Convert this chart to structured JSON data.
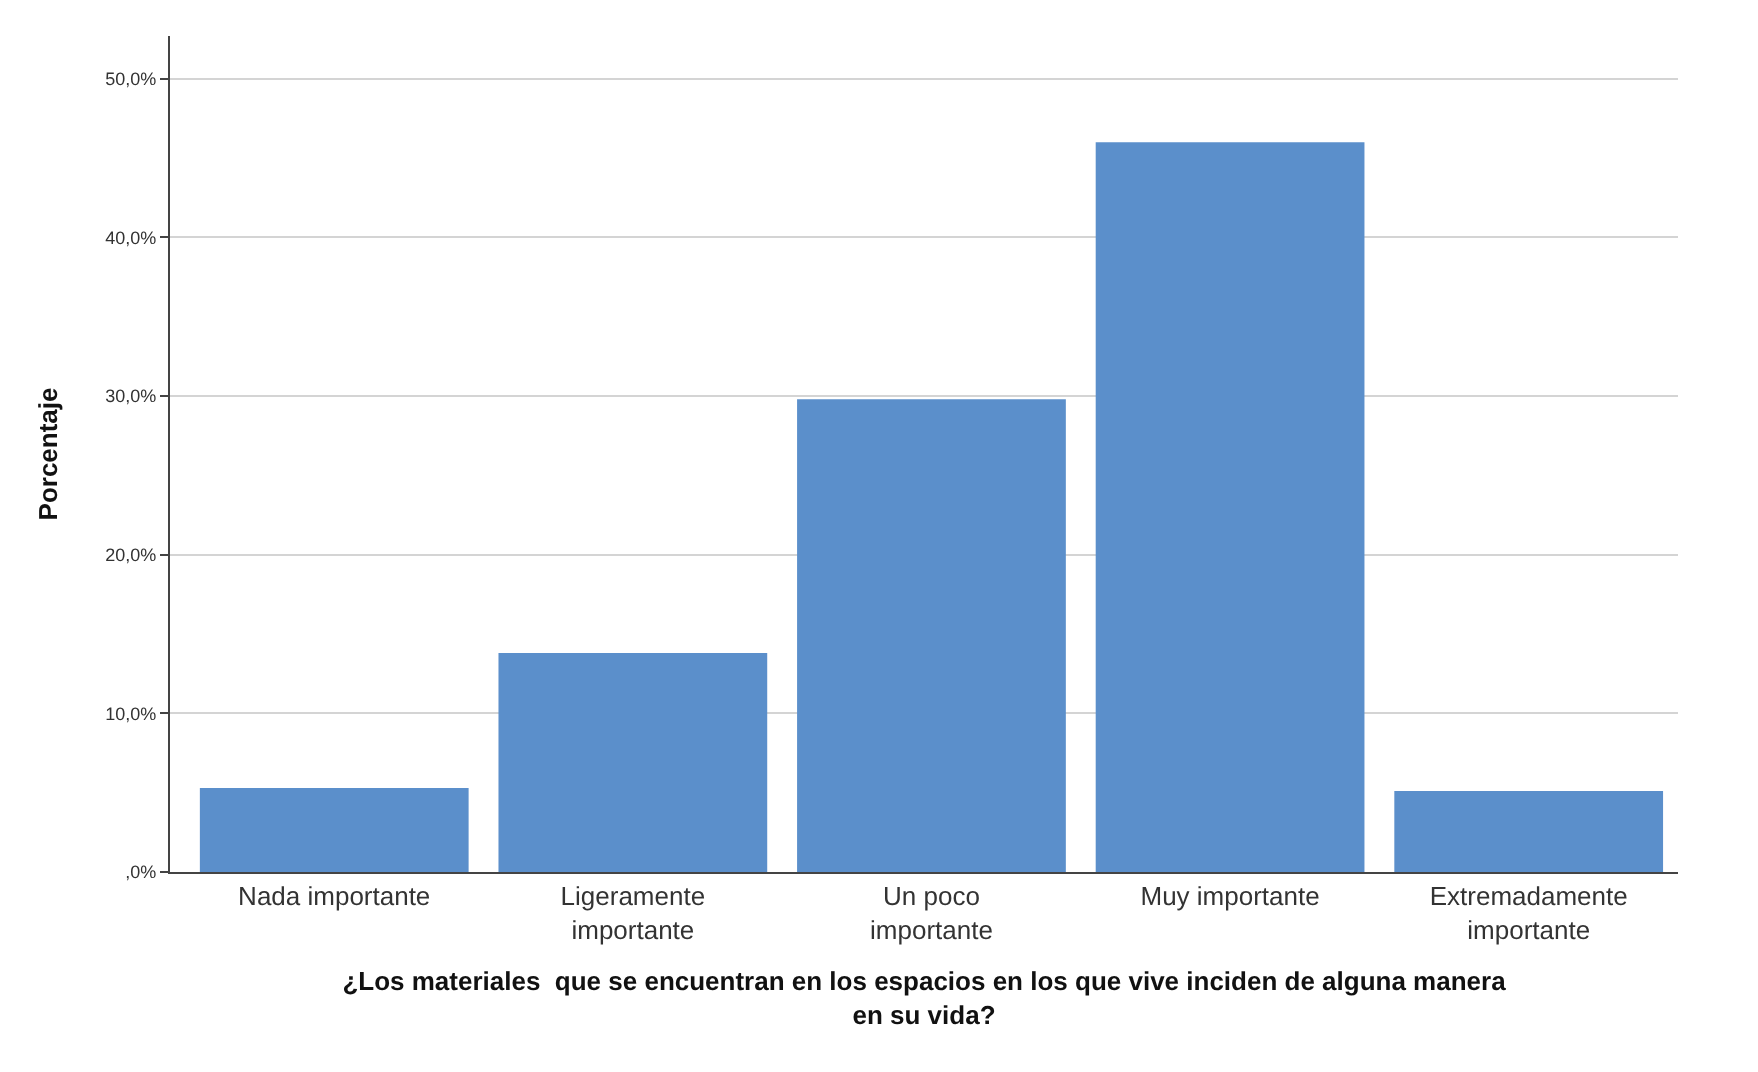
{
  "chart_data": {
    "type": "bar",
    "xlabel": "¿Los materiales  que se encuentran en los espacios en los que vive inciden de alguna manera en su vida?",
    "ylabel": "Porcentaje",
    "categories": [
      "Nada importante",
      "Ligeramente importante",
      "Un poco importante",
      "Muy importante",
      "Extremadamente importante"
    ],
    "values": [
      5.3,
      13.8,
      29.8,
      46.0,
      5.1
    ],
    "color": "#5b8fcb",
    "ylim": [
      0,
      52.7
    ],
    "yticks": [
      {
        "value": 0,
        "label": ",0%"
      },
      {
        "value": 10,
        "label": "10,0%"
      },
      {
        "value": 20,
        "label": "20,0%"
      },
      {
        "value": 30,
        "label": "30,0%"
      },
      {
        "value": 40,
        "label": "40,0%"
      },
      {
        "value": 50,
        "label": "50,0%"
      }
    ],
    "grid": "y",
    "legend": false
  }
}
